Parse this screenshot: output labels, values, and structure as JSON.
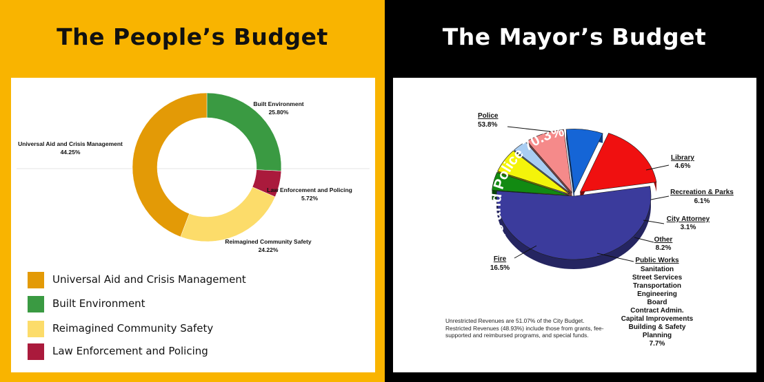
{
  "left_panel": {
    "title": "The People’s Budget",
    "background": "#f9b400",
    "legend": [
      {
        "label": "Universal Aid and Crisis Management",
        "color": "#e39a06"
      },
      {
        "label": "Built Environment",
        "color": "#3a9a42"
      },
      {
        "label": "Reimagined Community Safety",
        "color": "#fcdc6a"
      },
      {
        "label": "Law Enforcement and Policing",
        "color": "#aa1a3c"
      }
    ]
  },
  "right_panel": {
    "title": "The Mayor’s Budget",
    "background": "#000000",
    "public_works_items": [
      "Sanitation",
      "Street Services",
      "Transportation",
      "Engineering",
      "Board",
      "Contract Admin.",
      "Capital Improvements",
      "Building & Safety",
      "Planning"
    ],
    "footnote_lines": [
      "Unrestricted Revenues are 51.07% of the City Budget.",
      "Restricted Revenues (48.93%) include those from grants, fee-",
      "supported and reimbursed programs, and special funds."
    ]
  },
  "chart_data": [
    {
      "type": "pie",
      "variant": "donut",
      "title": "The People’s Budget",
      "slices": [
        {
          "name": "Built Environment",
          "label": "25.80%",
          "value": 25.8,
          "color": "#3a9a42"
        },
        {
          "name": "Law Enforcement and Policing",
          "label": "5.72%",
          "value": 5.72,
          "color": "#aa1a3c"
        },
        {
          "name": "Reimagined Community Safety",
          "label": "24.22%",
          "value": 24.22,
          "color": "#fcdc6a"
        },
        {
          "name": "Universal Aid and Crisis Management",
          "label": "44.25%",
          "value": 44.25,
          "color": "#e39a06"
        }
      ],
      "legend": "bottom-left"
    },
    {
      "type": "pie",
      "variant": "3d-exploded",
      "title": "The Mayor’s Budget",
      "annotation": "Fire and Police 70.3%",
      "slices": [
        {
          "name": "Police",
          "label": "53.8%",
          "value": 53.8,
          "color": "#3b3b9c"
        },
        {
          "name": "Library",
          "label": "4.6%",
          "value": 4.6,
          "color": "#128a12"
        },
        {
          "name": "Recreation & Parks",
          "label": "6.1%",
          "value": 6.1,
          "color": "#f4f40a"
        },
        {
          "name": "City Attorney",
          "label": "3.1%",
          "value": 3.1,
          "color": "#a9cdf2"
        },
        {
          "name": "Other",
          "label": "8.2%",
          "value": 8.2,
          "color": "#f58a8a"
        },
        {
          "name": "Public Works",
          "label": "7.7%",
          "value": 7.7,
          "color": "#1565d6"
        },
        {
          "name": "Fire",
          "label": "16.5%",
          "value": 16.5,
          "color": "#f01010"
        }
      ]
    }
  ]
}
